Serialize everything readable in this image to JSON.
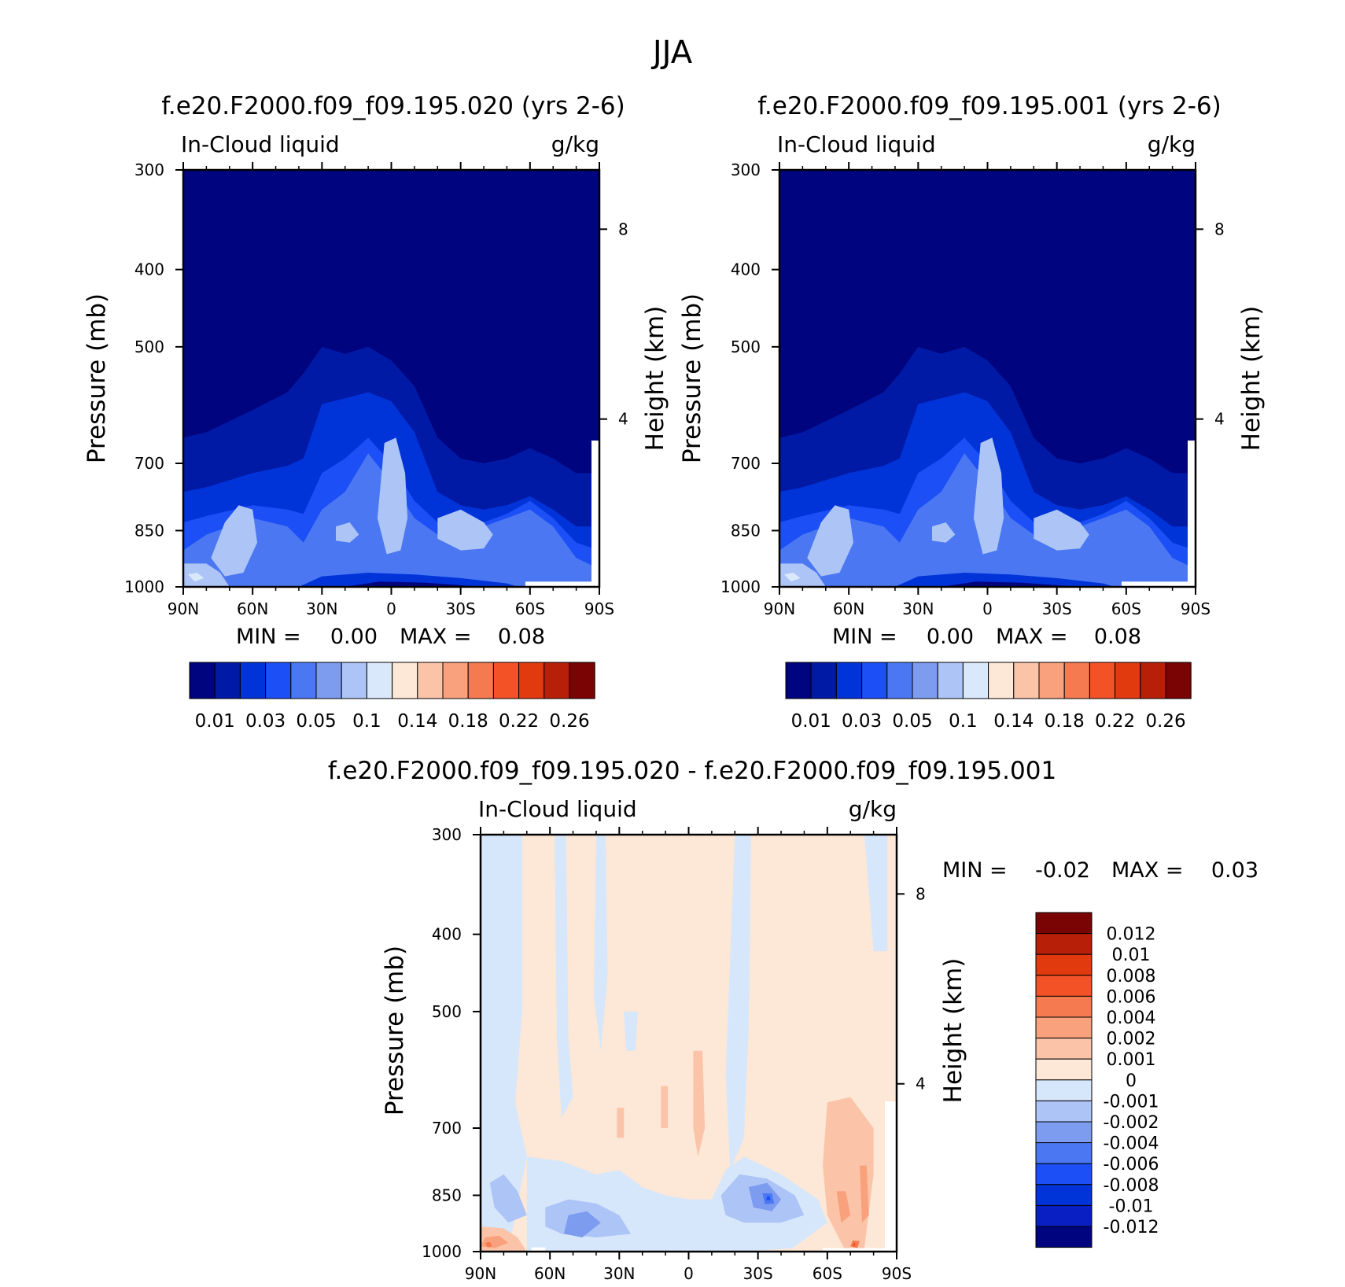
{
  "figure_title": "JJA",
  "colors": {
    "abs_scale": [
      "#00047e",
      "#001aa6",
      "#0034d9",
      "#1c4ff6",
      "#4b78f2",
      "#7d9cf0",
      "#adc4f6",
      "#d9e8fb",
      "#fde7d6",
      "#fbc4a8",
      "#f9a17d",
      "#f67a4f",
      "#f35227",
      "#e03a0e",
      "#b81f08",
      "#7a0303"
    ],
    "diff_scale": [
      "#00047e",
      "#0a1fc3",
      "#0034d9",
      "#1c4ff6",
      "#4b78f2",
      "#7d9cf0",
      "#adc4f6",
      "#d7e7fb",
      "#fde7d6",
      "#fbc4a8",
      "#f9a17d",
      "#f67a4f",
      "#f35227",
      "#e03a0e",
      "#b81f08",
      "#7a0303"
    ]
  },
  "chart_data": [
    {
      "type": "heatmap",
      "title": "f.e20.F2000.f09_f09.195.020 (yrs 2-6)",
      "left_label": "In-Cloud liquid",
      "right_label": "g/kg",
      "xlabel": "",
      "ylabel": "Pressure (mb)",
      "y2label": "Height (km)",
      "x_ticks": [
        "90N",
        "60N",
        "30N",
        "0",
        "30S",
        "60S",
        "90S"
      ],
      "y_ticks": [
        "300",
        "400",
        "500",
        "700",
        "850",
        "1000"
      ],
      "y2_ticks": [
        "8",
        "4"
      ],
      "xlim": [
        90,
        -90
      ],
      "ylim": [
        1000,
        300
      ],
      "min_label": "MIN =",
      "min_value": "0.00",
      "max_label": "MAX =",
      "max_value": "0.08",
      "colorbar_labels": [
        "0.01",
        "0.03",
        "0.05",
        "0.1",
        "0.14",
        "0.18",
        "0.22",
        "0.26"
      ],
      "top_boundary_mb": {
        "lat": [
          90,
          80,
          60,
          45,
          38,
          30,
          20,
          10,
          0,
          -10,
          -20,
          -30,
          -40,
          -50,
          -60,
          -70,
          -80,
          -90
        ],
        "level_1": [
          650,
          640,
          600,
          570,
          540,
          500,
          510,
          500,
          520,
          560,
          650,
          690,
          700,
          690,
          670,
          690,
          720,
          720
        ],
        "level_3": [
          760,
          750,
          720,
          705,
          690,
          590,
          580,
          570,
          585,
          640,
          760,
          790,
          800,
          790,
          770,
          800,
          840,
          840
        ],
        "level_5": [
          830,
          815,
          790,
          800,
          810,
          720,
          690,
          650,
          700,
          780,
          830,
          840,
          830,
          810,
          780,
          820,
          880,
          900
        ],
        "level_6": [
          900,
          860,
          820,
          840,
          880,
          800,
          760,
          680,
          740,
          820,
          860,
          860,
          840,
          820,
          800,
          840,
          920,
          950
        ]
      }
    },
    {
      "type": "heatmap",
      "title": "f.e20.F2000.f09_f09.195.001 (yrs 2-6)",
      "left_label": "In-Cloud liquid",
      "right_label": "g/kg",
      "xlabel": "",
      "ylabel": "Pressure (mb)",
      "y2label": "Height (km)",
      "x_ticks": [
        "90N",
        "60N",
        "30N",
        "0",
        "30S",
        "60S",
        "90S"
      ],
      "y_ticks": [
        "300",
        "400",
        "500",
        "700",
        "850",
        "1000"
      ],
      "y2_ticks": [
        "8",
        "4"
      ],
      "xlim": [
        90,
        -90
      ],
      "ylim": [
        1000,
        300
      ],
      "min_label": "MIN =",
      "min_value": "0.00",
      "max_label": "MAX =",
      "max_value": "0.08",
      "colorbar_labels": [
        "0.01",
        "0.03",
        "0.05",
        "0.1",
        "0.14",
        "0.18",
        "0.22",
        "0.26"
      ]
    },
    {
      "type": "heatmap",
      "title": "f.e20.F2000.f09_f09.195.020 - f.e20.F2000.f09_f09.195.001",
      "left_label": "In-Cloud liquid",
      "right_label": "g/kg",
      "xlabel": "",
      "ylabel": "Pressure (mb)",
      "y2label": "Height (km)",
      "x_ticks": [
        "90N",
        "60N",
        "30N",
        "0",
        "30S",
        "60S",
        "90S"
      ],
      "y_ticks": [
        "300",
        "400",
        "500",
        "700",
        "850",
        "1000"
      ],
      "y2_ticks": [
        "8",
        "4"
      ],
      "xlim": [
        90,
        -90
      ],
      "ylim": [
        1000,
        300
      ],
      "min_label": "MIN =",
      "min_value": "-0.02",
      "max_label": "MAX =",
      "max_value": "0.03",
      "colorbar_labels": [
        "0.012",
        "0.01",
        "0.008",
        "0.006",
        "0.004",
        "0.002",
        "0.001",
        "0",
        "-0.001",
        "-0.002",
        "-0.004",
        "-0.006",
        "-0.008",
        "-0.01",
        "-0.012"
      ]
    }
  ]
}
